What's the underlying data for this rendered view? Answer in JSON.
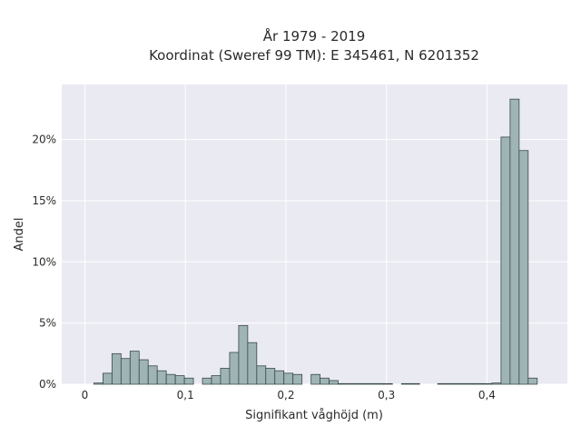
{
  "chart_data": {
    "type": "bar",
    "title_line1": "År 1979 - 2019",
    "title_line2": "Koordinat (Sweref 99 TM): E 345461, N 6201352",
    "xlabel": "Signifikant våghöjd (m)",
    "ylabel": "Andel",
    "xlim": [
      -0.023,
      0.48
    ],
    "ylim": [
      0,
      24.5
    ],
    "x_ticks": [
      0,
      0.1,
      0.2,
      0.3,
      0.4
    ],
    "x_tick_labels": [
      "0",
      "0,1",
      "0,2",
      "0,3",
      "0,4"
    ],
    "y_ticks": [
      0,
      5,
      10,
      15,
      20
    ],
    "y_tick_labels": [
      "0%",
      "5%",
      "10%",
      "15%",
      "20%"
    ],
    "bin_width": 0.009,
    "bin_starts": [
      0.009,
      0.018,
      0.027,
      0.036,
      0.045,
      0.054,
      0.063,
      0.072,
      0.081,
      0.09,
      0.099,
      0.117,
      0.126,
      0.135,
      0.144,
      0.153,
      0.162,
      0.171,
      0.18,
      0.189,
      0.198,
      0.207,
      0.225,
      0.234,
      0.243,
      0.252,
      0.261,
      0.27,
      0.279,
      0.288,
      0.297,
      0.315,
      0.324,
      0.351,
      0.36,
      0.369,
      0.378,
      0.387,
      0.396,
      0.405,
      0.414,
      0.423,
      0.432,
      0.441
    ],
    "values": [
      0.1,
      0.9,
      2.5,
      2.1,
      2.7,
      2.0,
      1.5,
      1.1,
      0.8,
      0.7,
      0.5,
      0.5,
      0.7,
      1.3,
      2.6,
      4.8,
      3.4,
      1.5,
      1.3,
      1.1,
      0.9,
      0.8,
      0.8,
      0.5,
      0.3,
      0.05,
      0.05,
      0.05,
      0.05,
      0.05,
      0.05,
      0.05,
      0.05,
      0.05,
      0.05,
      0.05,
      0.05,
      0.05,
      0.05,
      0.1,
      20.2,
      23.3,
      19.1,
      0.5
    ],
    "colors": {
      "background": "#eaeaf2",
      "grid": "#ffffff",
      "bar_fill": "#9fb4b4",
      "bar_edge": "#3a4a4a"
    },
    "grid": true
  }
}
